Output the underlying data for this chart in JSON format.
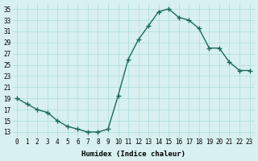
{
  "x": [
    0,
    1,
    2,
    3,
    4,
    5,
    6,
    7,
    8,
    9,
    10,
    11,
    12,
    13,
    14,
    15,
    16,
    17,
    18,
    19,
    20,
    21,
    22,
    23
  ],
  "y": [
    19,
    18,
    17,
    16.5,
    15,
    14,
    13.5,
    13,
    13,
    13.5,
    19.5,
    26,
    29.5,
    32,
    34.5,
    35,
    33.5,
    33,
    31.5,
    28,
    28,
    25.5,
    24,
    24
  ],
  "line_color": "#1a6b5a",
  "marker": "+",
  "marker_color": "#1a6b5a",
  "bg_color": "#d8f0ef",
  "grid_color": "#aadddd",
  "xlabel": "Humidex (Indice chaleur)",
  "ylabel_ticks": [
    13,
    15,
    17,
    19,
    21,
    23,
    25,
    27,
    29,
    31,
    33,
    35
  ],
  "xlim": [
    -0.5,
    23.5
  ],
  "ylim": [
    12,
    36
  ],
  "xtick_labels": [
    "0",
    "1",
    "2",
    "3",
    "4",
    "5",
    "6",
    "7",
    "8",
    "9",
    "10",
    "11",
    "12",
    "13",
    "14",
    "15",
    "16",
    "17",
    "18",
    "19",
    "20",
    "21",
    "22",
    "23"
  ]
}
